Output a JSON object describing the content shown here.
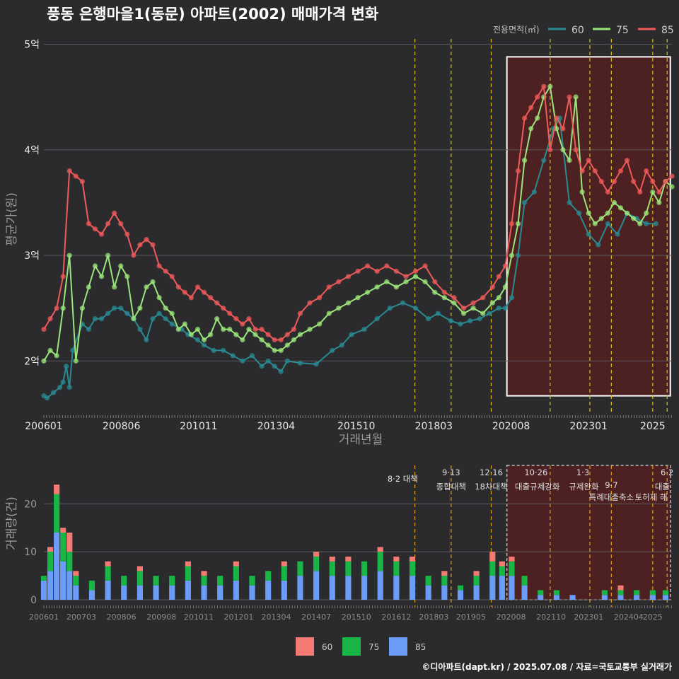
{
  "title": "풍동 은행마을1(동문) 아파트(2002) 매매가격 변화",
  "credit": "©디아파트(dapt.kr) / 2025.07.08 / 자료=국토교통부 실거래가",
  "colors": {
    "s60": "#2a8a92",
    "s75": "#9be57a",
    "s85": "#ef5a5a",
    "b60": "#f47a74",
    "b75": "#19b545",
    "b85": "#6b9cf7",
    "policy": "#d9c31a",
    "highlight": "#5a1d1d"
  },
  "price_legend": {
    "title": "전용면적(㎡)",
    "items": [
      "60",
      "75",
      "85"
    ]
  },
  "volume_legend": {
    "items": [
      "60",
      "75",
      "85"
    ]
  },
  "chart_data": [
    {
      "type": "line",
      "title": "풍동 은행마을1(동문) 아파트(2002) 매매가격 변화",
      "xlabel": "거래년월",
      "ylabel": "평균가(원)",
      "xlim": [
        2006.0,
        2025.6
      ],
      "ylim": [
        1.5,
        5.05
      ],
      "x_tick_values": [
        2006.0,
        2008.42,
        2010.83,
        2013.25,
        2015.75,
        2018.17,
        2020.58,
        2023.0,
        2025.0
      ],
      "x_tick_labels": [
        "200601",
        "200806",
        "201011",
        "201304",
        "201510",
        "201803",
        "202008",
        "202301",
        "2025"
      ],
      "y_tick_values": [
        2,
        3,
        4,
        5
      ],
      "y_tick_labels": [
        "2억",
        "3억",
        "4억",
        "5억"
      ],
      "highlight": [
        2020.45,
        2025.55
      ],
      "policy_lines": [
        2017.58,
        2018.71,
        2019.96,
        2021.8,
        2023.04,
        2023.71,
        2025.0,
        2025.45
      ],
      "series": [
        {
          "name": "60",
          "x": [
            2006.0,
            2006.1,
            2006.3,
            2006.5,
            2006.6,
            2006.7,
            2006.8,
            2006.9,
            2007.2,
            2007.4,
            2007.6,
            2007.8,
            2008.0,
            2008.2,
            2008.4,
            2008.6,
            2008.8,
            2009.0,
            2009.2,
            2009.4,
            2009.6,
            2009.8,
            2010.0,
            2010.3,
            2010.5,
            2010.8,
            2011.0,
            2011.3,
            2011.6,
            2011.9,
            2012.2,
            2012.5,
            2012.8,
            2013.0,
            2013.2,
            2013.4,
            2013.6,
            2014.0,
            2014.5,
            2015.0,
            2015.3,
            2015.6,
            2016.0,
            2016.4,
            2016.8,
            2017.2,
            2017.6,
            2018.0,
            2018.3,
            2018.7,
            2019.0,
            2019.3,
            2019.6,
            2019.9,
            2020.2,
            2020.4,
            2020.6,
            2020.8,
            2021.0,
            2021.3,
            2021.6,
            2021.9,
            2022.1,
            2022.4,
            2022.7,
            2023.0,
            2023.3,
            2023.6,
            2023.9,
            2024.2,
            2024.5,
            2024.8,
            2025.1
          ],
          "y": [
            1.67,
            1.65,
            1.7,
            1.75,
            1.8,
            1.95,
            1.75,
            2.1,
            2.35,
            2.3,
            2.4,
            2.4,
            2.45,
            2.5,
            2.5,
            2.45,
            2.4,
            2.3,
            2.2,
            2.4,
            2.45,
            2.4,
            2.35,
            2.3,
            2.25,
            2.2,
            2.15,
            2.1,
            2.1,
            2.05,
            2.0,
            2.05,
            1.95,
            2.0,
            1.95,
            1.9,
            2.0,
            1.98,
            1.97,
            2.1,
            2.15,
            2.25,
            2.3,
            2.4,
            2.5,
            2.55,
            2.5,
            2.4,
            2.45,
            2.38,
            2.35,
            2.38,
            2.4,
            2.45,
            2.5,
            2.5,
            2.6,
            3.0,
            3.5,
            3.6,
            3.9,
            4.2,
            4.3,
            3.5,
            3.4,
            3.2,
            3.1,
            3.3,
            3.2,
            3.4,
            3.35,
            3.3,
            3.3
          ]
        },
        {
          "name": "75",
          "x": [
            2006.0,
            2006.2,
            2006.4,
            2006.6,
            2006.8,
            2007.0,
            2007.2,
            2007.4,
            2007.6,
            2007.8,
            2008.0,
            2008.2,
            2008.4,
            2008.6,
            2008.8,
            2009.0,
            2009.2,
            2009.4,
            2009.6,
            2009.8,
            2010.0,
            2010.2,
            2010.4,
            2010.6,
            2010.8,
            2011.0,
            2011.2,
            2011.4,
            2011.6,
            2011.8,
            2012.0,
            2012.2,
            2012.4,
            2012.6,
            2012.8,
            2013.0,
            2013.2,
            2013.4,
            2013.6,
            2013.8,
            2014.0,
            2014.3,
            2014.6,
            2014.9,
            2015.2,
            2015.5,
            2015.8,
            2016.1,
            2016.4,
            2016.7,
            2017.0,
            2017.3,
            2017.6,
            2017.9,
            2018.2,
            2018.5,
            2018.8,
            2019.1,
            2019.4,
            2019.7,
            2020.0,
            2020.2,
            2020.4,
            2020.6,
            2020.8,
            2021.0,
            2021.2,
            2021.4,
            2021.6,
            2021.8,
            2022.0,
            2022.2,
            2022.4,
            2022.6,
            2022.8,
            2023.0,
            2023.2,
            2023.4,
            2023.6,
            2023.8,
            2024.0,
            2024.2,
            2024.4,
            2024.6,
            2024.8,
            2025.0,
            2025.2,
            2025.4,
            2025.6
          ],
          "y": [
            2.0,
            2.1,
            2.05,
            2.5,
            3.0,
            2.0,
            2.5,
            2.7,
            2.9,
            2.8,
            3.0,
            2.7,
            2.9,
            2.8,
            2.4,
            2.5,
            2.7,
            2.75,
            2.6,
            2.5,
            2.45,
            2.3,
            2.35,
            2.25,
            2.3,
            2.2,
            2.25,
            2.4,
            2.3,
            2.3,
            2.25,
            2.2,
            2.3,
            2.25,
            2.2,
            2.15,
            2.1,
            2.1,
            2.15,
            2.2,
            2.25,
            2.3,
            2.35,
            2.45,
            2.5,
            2.55,
            2.6,
            2.65,
            2.7,
            2.75,
            2.7,
            2.75,
            2.8,
            2.75,
            2.65,
            2.6,
            2.55,
            2.45,
            2.5,
            2.45,
            2.55,
            2.6,
            2.7,
            3.0,
            3.3,
            3.9,
            4.2,
            4.3,
            4.5,
            4.6,
            4.2,
            4.0,
            3.9,
            4.5,
            3.6,
            3.4,
            3.3,
            3.35,
            3.4,
            3.5,
            3.45,
            3.4,
            3.35,
            3.3,
            3.4,
            3.6,
            3.5,
            3.7,
            3.65
          ]
        },
        {
          "name": "85",
          "x": [
            2006.0,
            2006.2,
            2006.4,
            2006.6,
            2006.8,
            2007.0,
            2007.2,
            2007.4,
            2007.6,
            2007.8,
            2008.0,
            2008.2,
            2008.4,
            2008.6,
            2008.8,
            2009.0,
            2009.2,
            2009.4,
            2009.6,
            2009.8,
            2010.0,
            2010.2,
            2010.4,
            2010.6,
            2010.8,
            2011.0,
            2011.2,
            2011.4,
            2011.6,
            2011.8,
            2012.0,
            2012.2,
            2012.4,
            2012.6,
            2012.8,
            2013.0,
            2013.2,
            2013.4,
            2013.6,
            2013.8,
            2014.0,
            2014.3,
            2014.6,
            2014.9,
            2015.2,
            2015.5,
            2015.8,
            2016.1,
            2016.4,
            2016.7,
            2017.0,
            2017.3,
            2017.6,
            2017.9,
            2018.2,
            2018.5,
            2018.8,
            2019.1,
            2019.4,
            2019.7,
            2020.0,
            2020.2,
            2020.4,
            2020.6,
            2020.8,
            2021.0,
            2021.2,
            2021.4,
            2021.6,
            2021.8,
            2022.0,
            2022.2,
            2022.4,
            2022.6,
            2022.8,
            2023.0,
            2023.2,
            2023.4,
            2023.6,
            2023.8,
            2024.0,
            2024.2,
            2024.4,
            2024.6,
            2024.8,
            2025.0,
            2025.2,
            2025.4,
            2025.6
          ],
          "y": [
            2.3,
            2.4,
            2.5,
            2.8,
            3.8,
            3.75,
            3.7,
            3.3,
            3.25,
            3.2,
            3.3,
            3.4,
            3.3,
            3.2,
            3.0,
            3.1,
            3.15,
            3.1,
            2.9,
            2.85,
            2.8,
            2.7,
            2.65,
            2.6,
            2.7,
            2.65,
            2.6,
            2.55,
            2.5,
            2.45,
            2.4,
            2.35,
            2.4,
            2.3,
            2.3,
            2.25,
            2.2,
            2.2,
            2.25,
            2.3,
            2.45,
            2.55,
            2.6,
            2.7,
            2.75,
            2.8,
            2.85,
            2.9,
            2.85,
            2.9,
            2.85,
            2.8,
            2.85,
            2.9,
            2.75,
            2.65,
            2.6,
            2.5,
            2.55,
            2.6,
            2.7,
            2.8,
            2.9,
            3.3,
            3.8,
            4.3,
            4.4,
            4.5,
            4.6,
            4.0,
            4.3,
            4.2,
            4.5,
            4.0,
            3.8,
            3.9,
            3.8,
            3.7,
            3.6,
            3.7,
            3.8,
            3.9,
            3.7,
            3.6,
            3.8,
            3.7,
            3.6,
            3.7,
            3.75
          ]
        }
      ]
    },
    {
      "type": "bar",
      "stacked": true,
      "ylabel": "거래량(건)",
      "xlim": [
        2006.0,
        2025.6
      ],
      "ylim": [
        0,
        28
      ],
      "y_tick_values": [
        0,
        10,
        20
      ],
      "y_tick_labels": [
        "0",
        "10",
        "20"
      ],
      "x_tick_values": [
        2006.0,
        2007.17,
        2008.42,
        2009.67,
        2010.83,
        2012.08,
        2013.25,
        2014.5,
        2015.75,
        2017.0,
        2018.17,
        2019.33,
        2020.58,
        2021.83,
        2023.0,
        2024.25,
        2025.0
      ],
      "x_tick_labels": [
        "200601",
        "200703",
        "200806",
        "200908",
        "201011",
        "201201",
        "201304",
        "201407",
        "201510",
        "201612",
        "201803",
        "201905",
        "202008",
        "202110",
        "202301",
        "202404",
        "2025"
      ],
      "highlight": [
        2020.45,
        2025.55
      ],
      "policy_lines": [
        2017.58,
        2018.71,
        2019.96,
        2021.8,
        2023.04,
        2023.71,
        2025.0,
        2025.45
      ],
      "annotations": [
        "8·2 대책",
        "9·13",
        "종합대책",
        "12·16",
        "18차대책",
        "10·26",
        "대출규제강화",
        "1·3",
        "규제완화",
        "9·7",
        "특례대출축소",
        "6·2",
        "대출",
        "토허제 해"
      ],
      "series_names": [
        "60",
        "75",
        "85"
      ],
      "x": [
        2006.0,
        2006.2,
        2006.4,
        2006.6,
        2006.8,
        2007.0,
        2007.5,
        2008.0,
        2008.5,
        2009.0,
        2009.5,
        2010.0,
        2010.5,
        2011.0,
        2011.5,
        2012.0,
        2012.5,
        2013.0,
        2013.5,
        2014.0,
        2014.5,
        2015.0,
        2015.5,
        2016.0,
        2016.5,
        2017.0,
        2017.5,
        2018.0,
        2018.5,
        2019.0,
        2019.5,
        2020.0,
        2020.3,
        2020.6,
        2021.0,
        2021.5,
        2022.0,
        2022.5,
        2023.0,
        2023.5,
        2024.0,
        2024.5,
        2025.0,
        2025.4
      ],
      "v60": [
        0,
        1,
        2,
        1,
        4,
        1,
        0,
        1,
        0,
        1,
        0,
        0,
        1,
        1,
        0,
        1,
        0,
        0,
        1,
        0,
        1,
        1,
        1,
        0,
        1,
        1,
        1,
        0,
        1,
        0,
        1,
        2,
        1,
        1,
        0,
        0,
        0,
        0,
        0,
        0,
        1,
        0,
        0,
        0
      ],
      "v75": [
        1,
        4,
        8,
        6,
        4,
        2,
        2,
        3,
        2,
        3,
        2,
        2,
        3,
        2,
        2,
        3,
        2,
        2,
        3,
        3,
        3,
        3,
        3,
        3,
        4,
        3,
        3,
        2,
        2,
        1,
        2,
        3,
        2,
        3,
        2,
        1,
        1,
        0,
        0,
        1,
        1,
        1,
        1,
        1
      ],
      "v85": [
        4,
        6,
        14,
        8,
        6,
        3,
        2,
        4,
        3,
        3,
        3,
        3,
        4,
        3,
        3,
        4,
        3,
        4,
        4,
        5,
        6,
        5,
        5,
        5,
        6,
        5,
        5,
        3,
        3,
        2,
        3,
        5,
        5,
        5,
        3,
        1,
        1,
        1,
        0,
        1,
        1,
        1,
        1,
        1
      ]
    }
  ]
}
